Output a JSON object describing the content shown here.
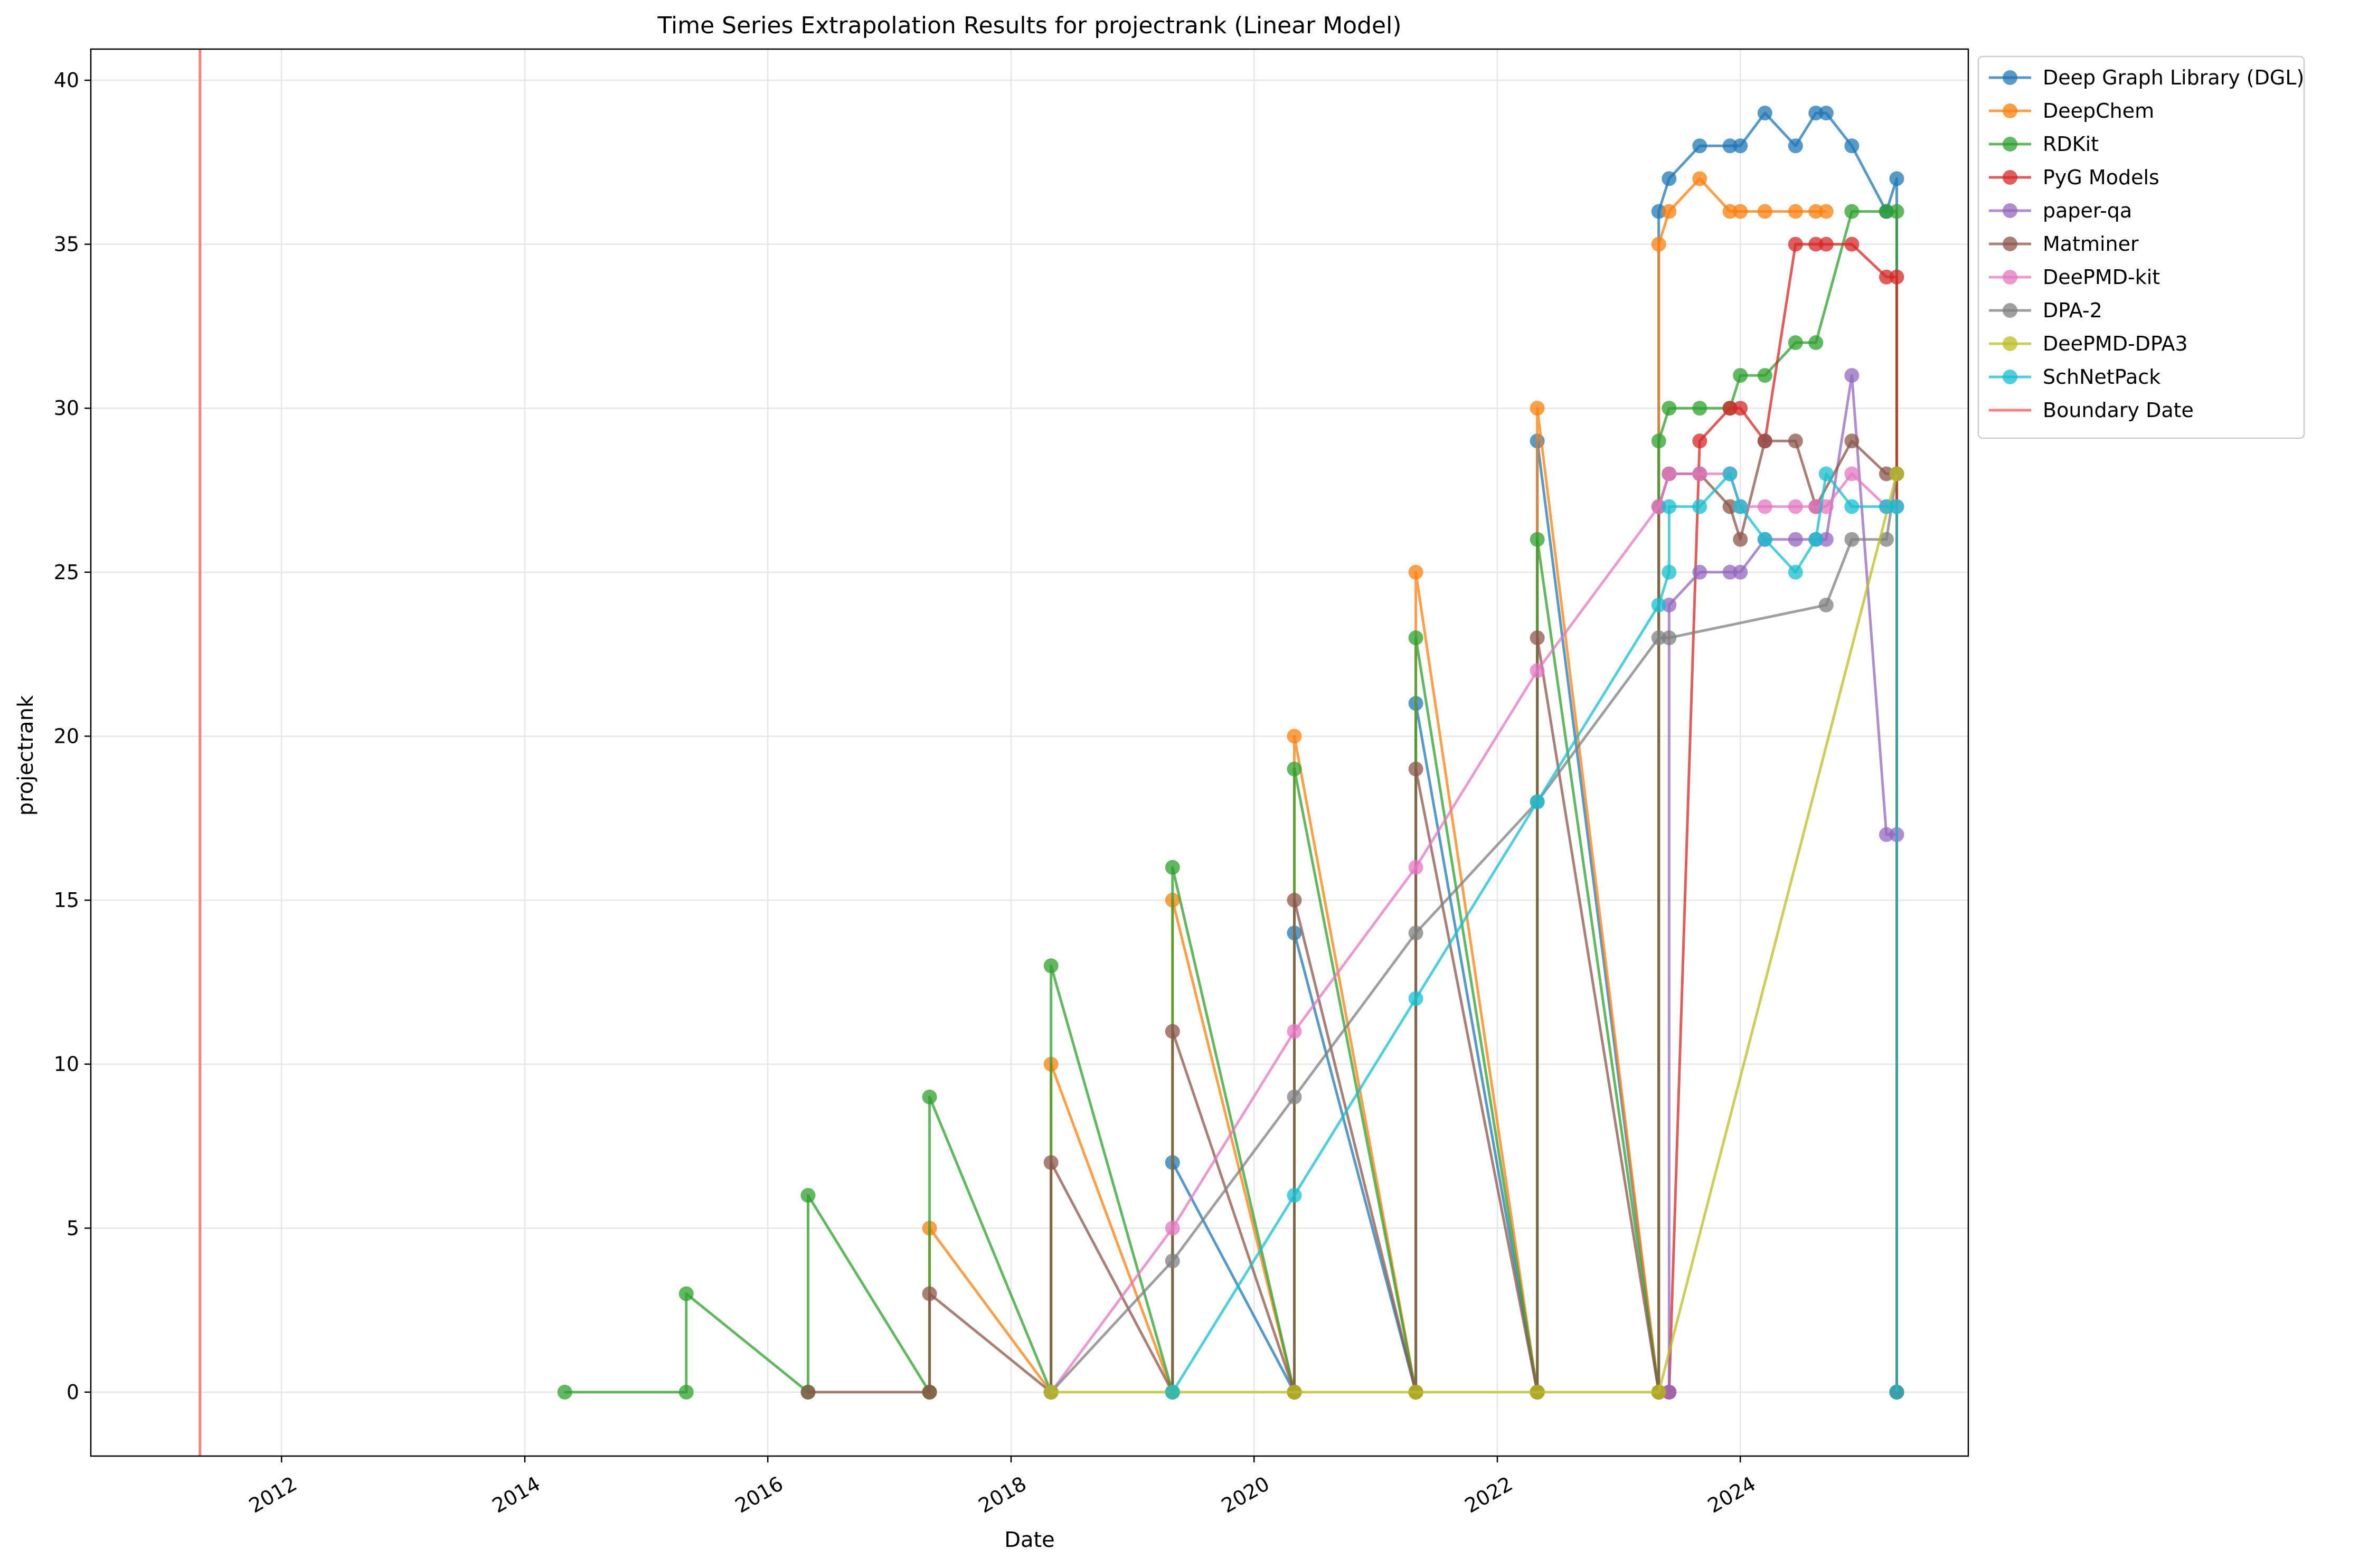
{
  "chart_data": {
    "type": "line",
    "title": "Time Series Extrapolation Results for projectrank (Linear Model)",
    "xlabel": "Date",
    "ylabel": "projectrank",
    "xlim": [
      "2010-06-07",
      "2025-11-16"
    ],
    "ylim": [
      -1.95,
      40.95
    ],
    "x_ticks": [
      "2012",
      "2014",
      "2016",
      "2018",
      "2020",
      "2022",
      "2024"
    ],
    "y_ticks": [
      "0",
      "5",
      "10",
      "15",
      "20",
      "25",
      "30",
      "35",
      "40"
    ],
    "grid": true,
    "legend_position": "outside-top-right",
    "boundary": {
      "name": "Boundary Date",
      "date": "2011-05-01",
      "color": "#ff7f7f"
    },
    "series": [
      {
        "name": "Deep Graph Library (DGL)",
        "color": "#1f77b4",
        "points": [
          [
            "2019-05-01",
            0
          ],
          [
            "2019-05-01",
            7
          ],
          [
            "2020-05-01",
            0
          ],
          [
            "2020-05-01",
            14
          ],
          [
            "2021-05-01",
            0
          ],
          [
            "2021-05-01",
            21
          ],
          [
            "2022-05-01",
            0
          ],
          [
            "2022-05-01",
            29
          ],
          [
            "2023-05-01",
            0
          ],
          [
            "2023-05-01",
            36
          ],
          [
            "2023-06-01",
            37
          ],
          [
            "2023-09-01",
            38
          ],
          [
            "2023-12-01",
            38
          ],
          [
            "2024-01-01",
            38
          ],
          [
            "2024-03-15",
            39
          ],
          [
            "2024-06-15",
            38
          ],
          [
            "2024-08-15",
            39
          ],
          [
            "2024-09-15",
            39
          ],
          [
            "2024-12-01",
            38
          ],
          [
            "2025-03-15",
            36
          ],
          [
            "2025-04-15",
            37
          ],
          [
            "2025-04-15",
            0
          ]
        ]
      },
      {
        "name": "DeepChem",
        "color": "#ff7f0e",
        "points": [
          [
            "2017-05-01",
            0
          ],
          [
            "2017-05-01",
            5
          ],
          [
            "2018-05-01",
            0
          ],
          [
            "2018-05-01",
            10
          ],
          [
            "2019-05-01",
            0
          ],
          [
            "2019-05-01",
            15
          ],
          [
            "2020-05-01",
            0
          ],
          [
            "2020-05-01",
            20
          ],
          [
            "2021-05-01",
            0
          ],
          [
            "2021-05-01",
            25
          ],
          [
            "2022-05-01",
            0
          ],
          [
            "2022-05-01",
            30
          ],
          [
            "2023-05-01",
            0
          ],
          [
            "2023-05-01",
            35
          ],
          [
            "2023-06-01",
            36
          ],
          [
            "2023-09-01",
            37
          ],
          [
            "2023-12-01",
            36
          ],
          [
            "2024-01-01",
            36
          ],
          [
            "2024-03-15",
            36
          ],
          [
            "2024-06-15",
            36
          ],
          [
            "2024-08-15",
            36
          ],
          [
            "2024-09-15",
            36
          ]
        ]
      },
      {
        "name": "RDKit",
        "color": "#2ca02c",
        "points": [
          [
            "2014-05-01",
            0
          ],
          [
            "2015-05-01",
            0
          ],
          [
            "2015-05-01",
            3
          ],
          [
            "2016-05-01",
            0
          ],
          [
            "2016-05-01",
            6
          ],
          [
            "2017-05-01",
            0
          ],
          [
            "2017-05-01",
            9
          ],
          [
            "2018-05-01",
            0
          ],
          [
            "2018-05-01",
            13
          ],
          [
            "2019-05-01",
            0
          ],
          [
            "2019-05-01",
            16
          ],
          [
            "2020-05-01",
            0
          ],
          [
            "2020-05-01",
            19
          ],
          [
            "2021-05-01",
            0
          ],
          [
            "2021-05-01",
            23
          ],
          [
            "2022-05-01",
            0
          ],
          [
            "2022-05-01",
            26
          ],
          [
            "2023-05-01",
            0
          ],
          [
            "2023-05-01",
            29
          ],
          [
            "2023-06-01",
            30
          ],
          [
            "2023-09-01",
            30
          ],
          [
            "2023-12-01",
            30
          ],
          [
            "2024-01-01",
            31
          ],
          [
            "2024-03-15",
            31
          ],
          [
            "2024-06-15",
            32
          ],
          [
            "2024-08-15",
            32
          ],
          [
            "2024-12-01",
            36
          ],
          [
            "2025-03-15",
            36
          ],
          [
            "2025-04-15",
            36
          ],
          [
            "2025-04-15",
            0
          ]
        ]
      },
      {
        "name": "PyG Models",
        "color": "#d62728",
        "points": [
          [
            "2023-06-01",
            0
          ],
          [
            "2023-09-01",
            29
          ],
          [
            "2023-12-01",
            30
          ],
          [
            "2024-01-01",
            30
          ],
          [
            "2024-03-15",
            29
          ],
          [
            "2024-06-15",
            35
          ],
          [
            "2024-08-15",
            35
          ],
          [
            "2024-09-15",
            35
          ],
          [
            "2024-12-01",
            35
          ],
          [
            "2025-03-15",
            34
          ],
          [
            "2025-04-15",
            34
          ],
          [
            "2025-04-15",
            0
          ]
        ]
      },
      {
        "name": "paper-qa",
        "color": "#9467bd",
        "points": [
          [
            "2023-06-01",
            0
          ],
          [
            "2023-06-01",
            24
          ],
          [
            "2023-09-01",
            25
          ],
          [
            "2023-12-01",
            25
          ],
          [
            "2024-01-01",
            25
          ],
          [
            "2024-03-15",
            26
          ],
          [
            "2024-06-15",
            26
          ],
          [
            "2024-08-15",
            26
          ],
          [
            "2024-09-15",
            26
          ],
          [
            "2024-12-01",
            31
          ],
          [
            "2025-03-15",
            17
          ],
          [
            "2025-04-15",
            17
          ]
        ]
      },
      {
        "name": "Matminer",
        "color": "#8c564b",
        "points": [
          [
            "2016-05-01",
            0
          ],
          [
            "2017-05-01",
            0
          ],
          [
            "2017-05-01",
            3
          ],
          [
            "2018-05-01",
            0
          ],
          [
            "2018-05-01",
            7
          ],
          [
            "2019-05-01",
            0
          ],
          [
            "2019-05-01",
            11
          ],
          [
            "2020-05-01",
            0
          ],
          [
            "2020-05-01",
            15
          ],
          [
            "2021-05-01",
            0
          ],
          [
            "2021-05-01",
            19
          ],
          [
            "2022-05-01",
            0
          ],
          [
            "2022-05-01",
            23
          ],
          [
            "2023-05-01",
            0
          ],
          [
            "2023-05-01",
            27
          ],
          [
            "2023-06-01",
            28
          ],
          [
            "2023-09-01",
            28
          ],
          [
            "2023-12-01",
            27
          ],
          [
            "2024-01-01",
            26
          ],
          [
            "2024-03-15",
            29
          ],
          [
            "2024-06-15",
            29
          ],
          [
            "2024-08-15",
            27
          ],
          [
            "2024-12-01",
            29
          ],
          [
            "2025-03-15",
            28
          ],
          [
            "2025-04-15",
            28
          ]
        ]
      },
      {
        "name": "DeePMD-kit",
        "color": "#e377c2",
        "points": [
          [
            "2018-05-01",
            0
          ],
          [
            "2019-05-01",
            5
          ],
          [
            "2020-05-01",
            11
          ],
          [
            "2021-05-01",
            16
          ],
          [
            "2022-05-01",
            22
          ],
          [
            "2023-05-01",
            27
          ],
          [
            "2023-06-01",
            28
          ],
          [
            "2023-09-01",
            28
          ],
          [
            "2023-12-01",
            28
          ],
          [
            "2024-01-01",
            27
          ],
          [
            "2024-03-15",
            27
          ],
          [
            "2024-06-15",
            27
          ],
          [
            "2024-08-15",
            27
          ],
          [
            "2024-09-15",
            27
          ],
          [
            "2024-12-01",
            28
          ],
          [
            "2025-03-15",
            27
          ],
          [
            "2025-04-15",
            27
          ]
        ]
      },
      {
        "name": "DPA-2",
        "color": "#7f7f7f",
        "points": [
          [
            "2018-05-01",
            0
          ],
          [
            "2019-05-01",
            4
          ],
          [
            "2020-05-01",
            9
          ],
          [
            "2021-05-01",
            14
          ],
          [
            "2022-05-01",
            18
          ],
          [
            "2023-05-01",
            23
          ],
          [
            "2023-06-01",
            23
          ],
          [
            "2024-09-15",
            24
          ],
          [
            "2024-12-01",
            26
          ],
          [
            "2025-03-15",
            26
          ],
          [
            "2025-04-15",
            28
          ]
        ]
      },
      {
        "name": "DeePMD-DPA3",
        "color": "#bcbd22",
        "points": [
          [
            "2018-05-01",
            0
          ],
          [
            "2019-05-01",
            0
          ],
          [
            "2020-05-01",
            0
          ],
          [
            "2021-05-01",
            0
          ],
          [
            "2022-05-01",
            0
          ],
          [
            "2023-05-01",
            0
          ],
          [
            "2025-04-15",
            28
          ]
        ]
      },
      {
        "name": "SchNetPack",
        "color": "#17becf",
        "points": [
          [
            "2019-05-01",
            0
          ],
          [
            "2020-05-01",
            6
          ],
          [
            "2021-05-01",
            12
          ],
          [
            "2022-05-01",
            18
          ],
          [
            "2023-05-01",
            24
          ],
          [
            "2023-06-01",
            25
          ],
          [
            "2023-06-01",
            27
          ],
          [
            "2023-09-01",
            27
          ],
          [
            "2023-12-01",
            28
          ],
          [
            "2024-01-01",
            27
          ],
          [
            "2024-03-15",
            26
          ],
          [
            "2024-06-15",
            25
          ],
          [
            "2024-08-15",
            26
          ],
          [
            "2024-09-15",
            28
          ],
          [
            "2024-12-01",
            27
          ],
          [
            "2025-03-15",
            27
          ],
          [
            "2025-04-15",
            27
          ],
          [
            "2025-04-15",
            0
          ]
        ]
      }
    ]
  }
}
